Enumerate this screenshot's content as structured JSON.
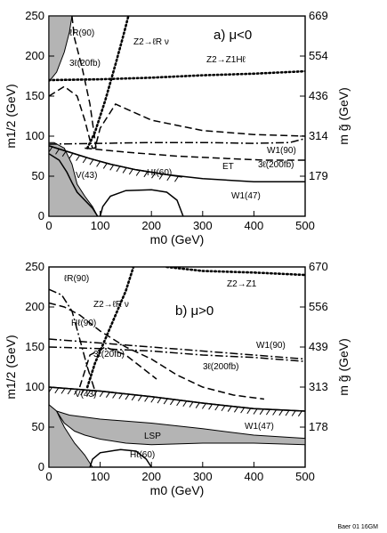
{
  "credit": "Baer 01 16GM",
  "chart_data": [
    {
      "type": "line",
      "panel_label": "a) μ<0",
      "xlabel": "m0 (GeV)",
      "ylabel": "m1/2 (GeV)",
      "right_label": "m g̃ (GeV)",
      "xlim": [
        0,
        500
      ],
      "ylim": [
        0,
        250
      ],
      "x_ticks": [
        "0",
        "100",
        "200",
        "300",
        "400",
        "500"
      ],
      "y_ticks": [
        "0",
        "50",
        "100",
        "150",
        "200",
        "250"
      ],
      "right_ticks": [
        {
          "m12": 50,
          "label": "179"
        },
        {
          "m12": 100,
          "label": "314"
        },
        {
          "m12": 150,
          "label": "436"
        },
        {
          "m12": 200,
          "label": "554"
        },
        {
          "m12": 250,
          "label": "669"
        }
      ],
      "regions": [
        {
          "name": "excluded-left-low",
          "points": [
            [
              0,
              0
            ],
            [
              0,
              92
            ],
            [
              10,
              92
            ],
            [
              30,
              85
            ],
            [
              45,
              65
            ],
            [
              55,
              40
            ],
            [
              70,
              25
            ],
            [
              85,
              12
            ],
            [
              95,
              0
            ]
          ]
        },
        {
          "name": "excluded-top-left",
          "points": [
            [
              0,
              250
            ],
            [
              0,
              168
            ],
            [
              15,
              180
            ],
            [
              30,
              205
            ],
            [
              40,
              230
            ],
            [
              45,
              250
            ]
          ]
        }
      ],
      "series": [
        {
          "name": "Z2→Z1Hℓ",
          "style": "dotted-thick",
          "points": [
            [
              0,
              170
            ],
            [
              100,
              171
            ],
            [
              200,
              173
            ],
            [
              300,
              176
            ],
            [
              400,
              178
            ],
            [
              500,
              181
            ]
          ]
        },
        {
          "name": "ℓR(90)",
          "style": "dashed",
          "points": [
            [
              45,
              250
            ],
            [
              50,
              222
            ],
            [
              65,
              185
            ],
            [
              80,
              140
            ],
            [
              90,
              95
            ],
            [
              92,
              85
            ]
          ]
        },
        {
          "name": "Z2→ℓR ν",
          "style": "dotted-thick",
          "points": [
            [
              75,
              85
            ],
            [
              90,
              105
            ],
            [
              110,
              145
            ],
            [
              130,
              190
            ],
            [
              145,
              225
            ],
            [
              155,
              250
            ]
          ]
        },
        {
          "name": "3ℓ(20fb)",
          "style": "dashed",
          "points": [
            [
              0,
              150
            ],
            [
              30,
              162
            ],
            [
              55,
              150
            ],
            [
              70,
              120
            ],
            [
              80,
              95
            ],
            [
              85,
              85
            ],
            [
              90,
              85
            ],
            [
              100,
              110
            ],
            [
              130,
              140
            ],
            [
              200,
              120
            ],
            [
              300,
              107
            ],
            [
              400,
              102
            ],
            [
              500,
              100
            ]
          ]
        },
        {
          "name": "3ℓ(200fb)",
          "style": "dashed",
          "points": [
            [
              70,
              85
            ],
            [
              150,
              80
            ],
            [
              250,
              75
            ],
            [
              350,
              72
            ],
            [
              420,
              70
            ],
            [
              500,
              70
            ]
          ]
        },
        {
          "name": "W1(90)",
          "style": "dashdot",
          "points": [
            [
              0,
              90
            ],
            [
              100,
              91
            ],
            [
              200,
              92
            ],
            [
              300,
              92
            ],
            [
              400,
              91
            ],
            [
              470,
              92
            ],
            [
              500,
              97
            ]
          ]
        },
        {
          "name": "Hℓ(60)",
          "style": "solid",
          "points": [
            [
              100,
              0
            ],
            [
              105,
              12
            ],
            [
              120,
              25
            ],
            [
              150,
              32
            ],
            [
              200,
              33
            ],
            [
              230,
              30
            ],
            [
              250,
              20
            ],
            [
              262,
              0
            ]
          ]
        },
        {
          "name": "W1(47)",
          "style": "solid",
          "points": [
            [
              0,
              88
            ],
            [
              40,
              80
            ],
            [
              80,
              72
            ],
            [
              120,
              65
            ],
            [
              170,
              58
            ],
            [
              230,
              52
            ],
            [
              300,
              47
            ],
            [
              400,
              43
            ],
            [
              500,
              43
            ]
          ]
        },
        {
          "name": "ET",
          "style": "hatch",
          "points": [
            [
              0,
              88
            ],
            [
              40,
              80
            ],
            [
              80,
              72
            ],
            [
              120,
              65
            ],
            [
              170,
              58
            ],
            [
              230,
              52
            ],
            [
              260,
              49
            ]
          ]
        },
        {
          "name": "V(43)",
          "style": "solid",
          "points": [
            [
              0,
              78
            ],
            [
              20,
              70
            ],
            [
              35,
              55
            ],
            [
              45,
              42
            ],
            [
              55,
              30
            ],
            [
              70,
              20
            ],
            [
              85,
              10
            ],
            [
              95,
              0
            ]
          ]
        }
      ],
      "labels": [
        "Z2→Z1Hℓ",
        "ℓR(90)",
        "Z2→ℓR ν",
        "3ℓ(20fb)",
        "W1(90)",
        "3ℓ(200fb)",
        "Hℓ(60)",
        "ET",
        "V(43)",
        "W1(47)"
      ]
    },
    {
      "type": "line",
      "panel_label": "b) μ>0",
      "xlabel": "m0 (GeV)",
      "ylabel": "m1/2 (GeV)",
      "right_label": "m g̃ (GeV)",
      "xlim": [
        0,
        500
      ],
      "ylim": [
        0,
        250
      ],
      "x_ticks": [
        "0",
        "100",
        "200",
        "300",
        "400",
        "500"
      ],
      "y_ticks": [
        "0",
        "50",
        "100",
        "150",
        "200",
        "250"
      ],
      "right_ticks": [
        {
          "m12": 50,
          "label": "178"
        },
        {
          "m12": 100,
          "label": "313"
        },
        {
          "m12": 150,
          "label": "439"
        },
        {
          "m12": 200,
          "label": "556"
        },
        {
          "m12": 250,
          "label": "670"
        }
      ],
      "regions": [
        {
          "name": "excluded-left",
          "points": [
            [
              0,
              0
            ],
            [
              0,
              78
            ],
            [
              15,
              70
            ],
            [
              30,
              50
            ],
            [
              50,
              30
            ],
            [
              70,
              15
            ],
            [
              85,
              0
            ]
          ]
        },
        {
          "name": "lsp-band",
          "points": [
            [
              15,
              70
            ],
            [
              40,
              65
            ],
            [
              100,
              60
            ],
            [
              200,
              55
            ],
            [
              300,
              48
            ],
            [
              400,
              40
            ],
            [
              500,
              36
            ],
            [
              500,
              28
            ],
            [
              400,
              30
            ],
            [
              300,
              30
            ],
            [
              200,
              28
            ],
            [
              150,
              30
            ],
            [
              100,
              35
            ],
            [
              70,
              40
            ],
            [
              50,
              45
            ],
            [
              40,
              50
            ],
            [
              30,
              55
            ]
          ]
        }
      ],
      "series": [
        {
          "name": "ℓR(90)",
          "style": "dashdot",
          "points": [
            [
              0,
              222
            ],
            [
              25,
              215
            ],
            [
              45,
              195
            ],
            [
              60,
              160
            ],
            [
              75,
              125
            ],
            [
              90,
              95
            ]
          ]
        },
        {
          "name": "Z2→ℓR ν",
          "style": "dotted-thick",
          "points": [
            [
              75,
              100
            ],
            [
              90,
              130
            ],
            [
              110,
              160
            ],
            [
              130,
              190
            ],
            [
              150,
              220
            ],
            [
              165,
              250
            ]
          ]
        },
        {
          "name": "Z2→Z1",
          "style": "dotted-thick",
          "points": [
            [
              230,
              250
            ],
            [
              300,
              245
            ],
            [
              400,
              243
            ],
            [
              500,
              240
            ]
          ]
        },
        {
          "name": "Hℓ(90)",
          "style": "dashdot",
          "points": [
            [
              0,
              150
            ],
            [
              100,
              148
            ],
            [
              200,
              145
            ],
            [
              300,
              140
            ],
            [
              400,
              137
            ],
            [
              500,
              132
            ]
          ]
        },
        {
          "name": "W1(90)",
          "style": "dashdot",
          "points": [
            [
              0,
              160
            ],
            [
              100,
              155
            ],
            [
              200,
              150
            ],
            [
              300,
              145
            ],
            [
              400,
              140
            ],
            [
              500,
              135
            ]
          ]
        },
        {
          "name": "3ℓ(20fb)",
          "style": "dashed",
          "points": [
            [
              0,
              205
            ],
            [
              30,
              200
            ],
            [
              60,
              190
            ],
            [
              100,
              170
            ],
            [
              150,
              150
            ],
            [
              200,
              135
            ],
            [
              250,
              115
            ],
            [
              300,
              100
            ],
            [
              360,
              90
            ],
            [
              420,
              85
            ]
          ]
        },
        {
          "name": "3ℓ(200fb)",
          "style": "dashed",
          "points": [
            [
              60,
              100
            ],
            [
              80,
              140
            ],
            [
              110,
              150
            ],
            [
              150,
              140
            ],
            [
              180,
              125
            ],
            [
              200,
              115
            ],
            [
              210,
              110
            ]
          ]
        },
        {
          "name": "V(43)",
          "style": "solid",
          "points": [
            [
              0,
              100
            ],
            [
              100,
              95
            ],
            [
              200,
              88
            ],
            [
              300,
              80
            ],
            [
              400,
              73
            ],
            [
              500,
              70
            ]
          ]
        },
        {
          "name": "W1(47)",
          "style": "hatch",
          "points": [
            [
              0,
              100
            ],
            [
              100,
              95
            ],
            [
              200,
              88
            ],
            [
              300,
              80
            ],
            [
              400,
              73
            ],
            [
              500,
              70
            ]
          ]
        },
        {
          "name": "Hℓ(60)",
          "style": "solid",
          "points": [
            [
              80,
              0
            ],
            [
              85,
              10
            ],
            [
              100,
              18
            ],
            [
              140,
              22
            ],
            [
              170,
              20
            ],
            [
              190,
              10
            ],
            [
              200,
              0
            ]
          ]
        }
      ],
      "labels": [
        "ℓR(90)",
        "Z2→ℓR ν",
        "Z2→Z1",
        "Hℓ(90)",
        "W1(90)",
        "3ℓ(20fb)",
        "3ℓ(200fb)",
        "V(43)",
        "LSP",
        "W1(47)",
        "Hℓ(60)"
      ]
    }
  ]
}
